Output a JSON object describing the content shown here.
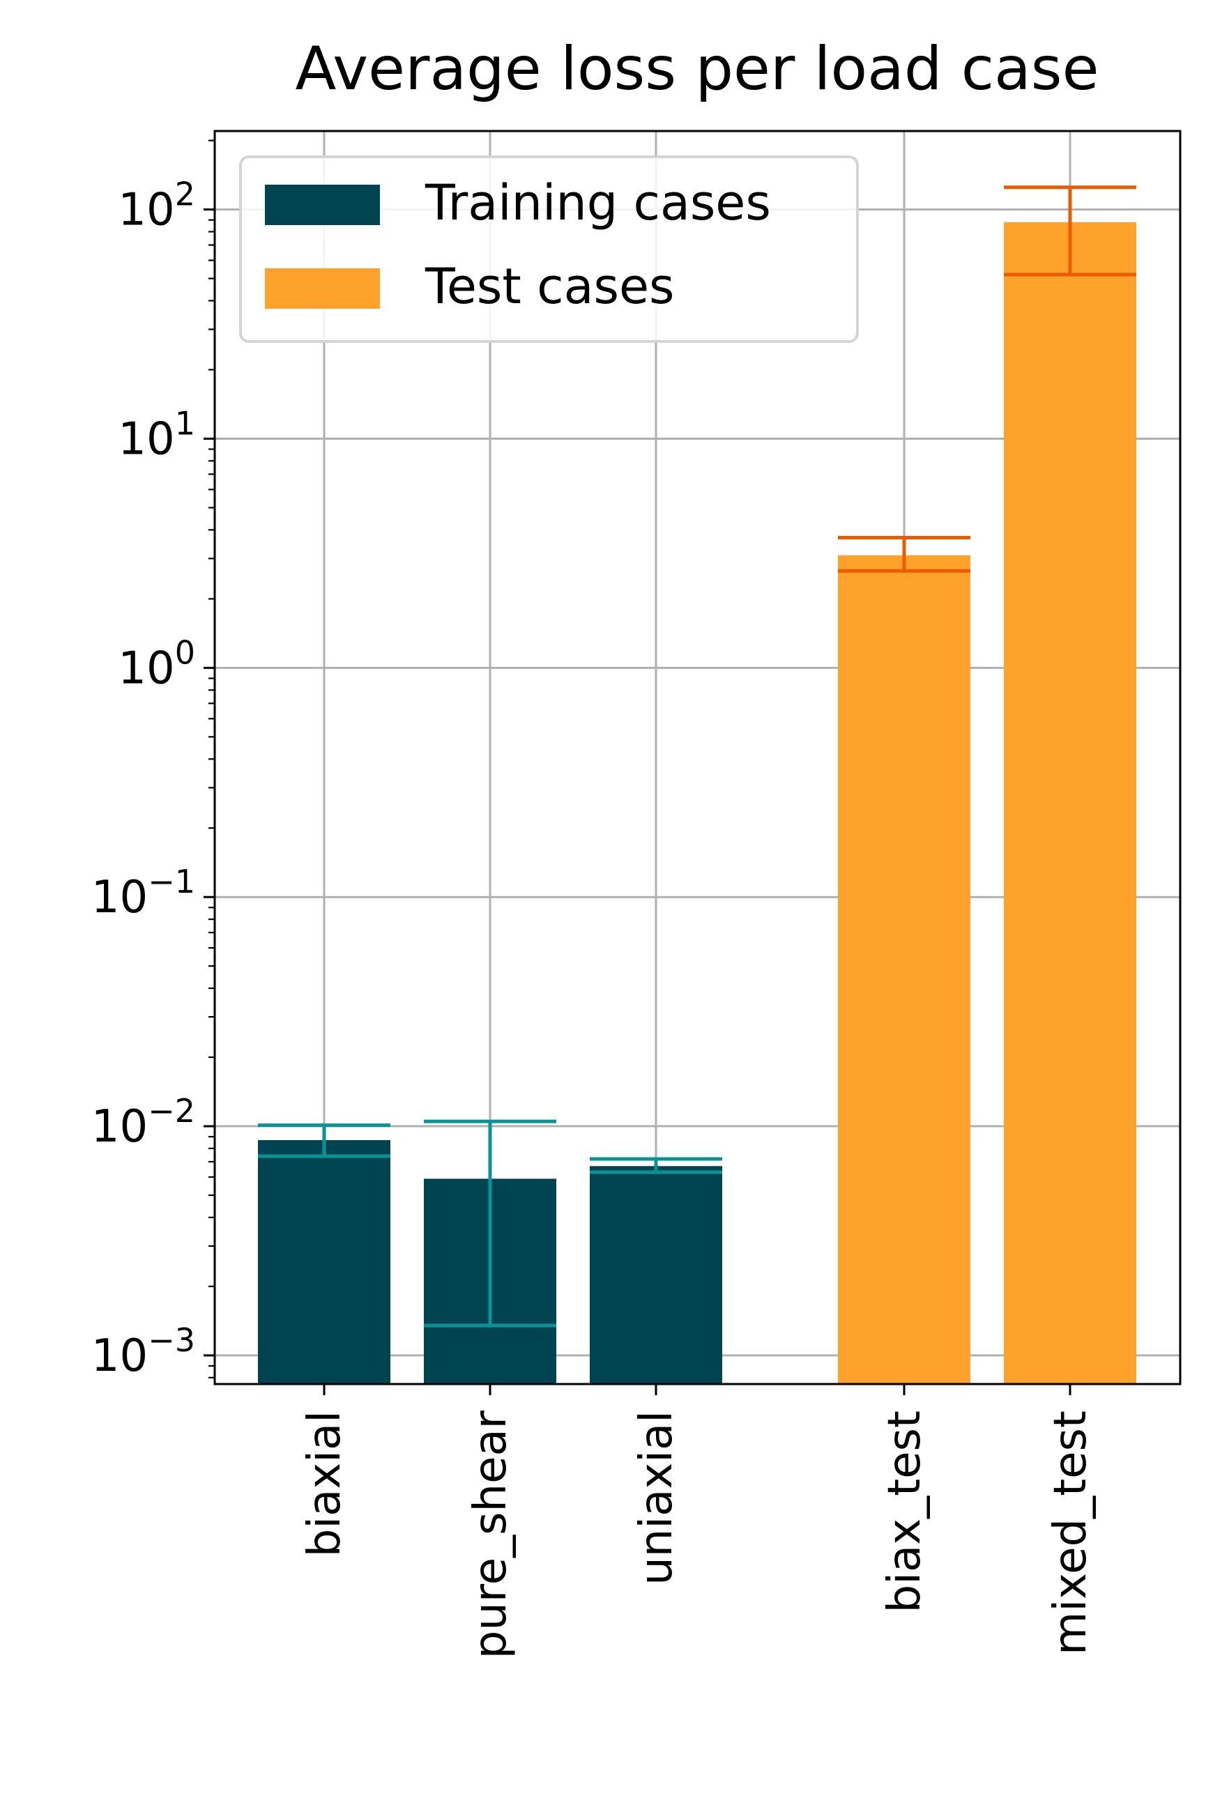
{
  "chart_data": {
    "type": "bar",
    "title": "Average loss per load case",
    "xlabel": "",
    "ylabel": "",
    "yscale": "log",
    "ylim": [
      0.00075,
      220
    ],
    "yticks": [
      {
        "value": 0.001,
        "base": "10",
        "exp": "−3"
      },
      {
        "value": 0.01,
        "base": "10",
        "exp": "−2"
      },
      {
        "value": 0.1,
        "base": "10",
        "exp": "−1"
      },
      {
        "value": 1,
        "base": "10",
        "exp": "0"
      },
      {
        "value": 10,
        "base": "10",
        "exp": "1"
      },
      {
        "value": 100,
        "base": "10",
        "exp": "2"
      }
    ],
    "grid": true,
    "legend_position": "top-left",
    "series": [
      {
        "name": "Training cases",
        "color": "#004452",
        "error_color": "#089496",
        "bars": [
          {
            "category": "biaxial",
            "value": 0.0087,
            "err_low": 0.0074,
            "err_high": 0.0101
          },
          {
            "category": "pure_shear",
            "value": 0.0059,
            "err_low": 0.00135,
            "err_high": 0.0105
          },
          {
            "category": "uniaxial",
            "value": 0.0067,
            "err_low": 0.0063,
            "err_high": 0.0072
          }
        ]
      },
      {
        "name": "Test cases",
        "color": "#FFA22C",
        "error_color": "#EB5C00",
        "bars": [
          {
            "category": "biax_test",
            "value": 3.1,
            "err_low": 2.65,
            "err_high": 3.7
          },
          {
            "category": "mixed_test",
            "value": 88,
            "err_low": 52,
            "err_high": 125
          }
        ]
      }
    ]
  }
}
